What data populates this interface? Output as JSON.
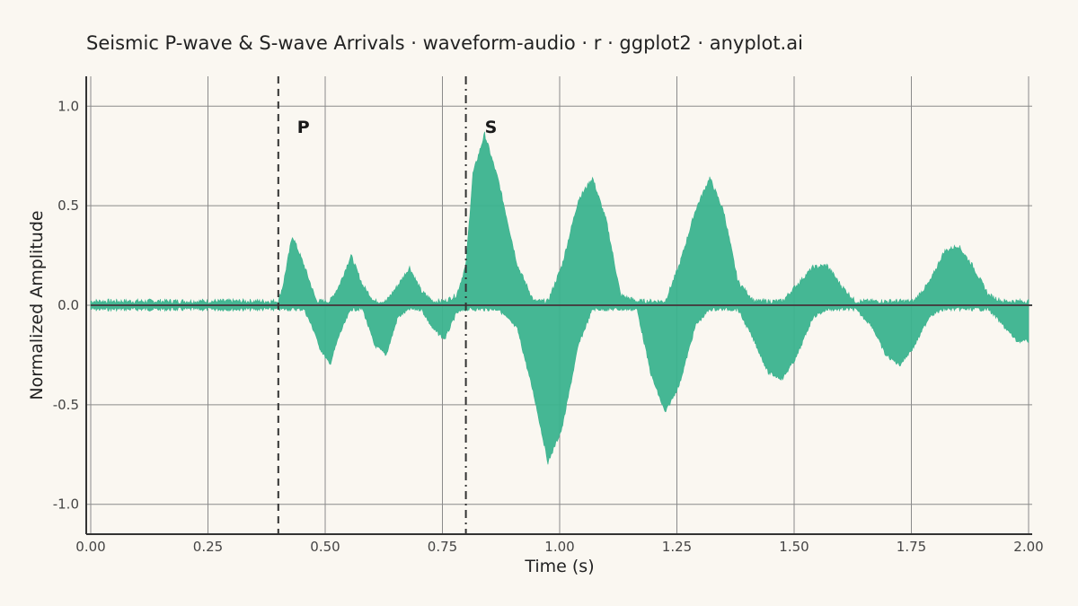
{
  "chart_data": {
    "type": "area",
    "title": "Seismic P-wave & S-wave Arrivals · waveform-audio · r · ggplot2 · anyplot.ai",
    "xlabel": "Time (s)",
    "ylabel": "Normalized Amplitude",
    "xlim": [
      0.0,
      2.0
    ],
    "ylim": [
      -1.15,
      1.15
    ],
    "x_ticks": [
      0.0,
      0.25,
      0.5,
      0.75,
      1.0,
      1.25,
      1.5,
      1.75,
      2.0
    ],
    "x_tick_labels": [
      "0.00",
      "0.25",
      "0.50",
      "0.75",
      "1.00",
      "1.25",
      "1.50",
      "1.75",
      "2.00"
    ],
    "y_ticks": [
      -1.0,
      -0.5,
      0.0,
      0.5,
      1.0
    ],
    "y_tick_labels": [
      "-1.0",
      "-0.5",
      "0.0",
      "0.5",
      "1.0"
    ],
    "grid": true,
    "fill_color": "#3BB38E",
    "baseline_color": "#444444",
    "markers": [
      {
        "label": "P",
        "x": 0.4,
        "style": "dashed"
      },
      {
        "label": "S",
        "x": 0.8,
        "style": "dotdash"
      }
    ],
    "series": [
      {
        "x": [
          0.0,
          0.4,
          0.41,
          0.43,
          0.455,
          0.48,
          0.485,
          0.51,
          0.53,
          0.555,
          0.58,
          0.605,
          0.63,
          0.655,
          0.68,
          0.705,
          0.73,
          0.755,
          0.78,
          0.8,
          0.815,
          0.84,
          0.87,
          0.91,
          0.945,
          0.975,
          1.005,
          1.04,
          1.07,
          1.1,
          1.13,
          1.165,
          1.195,
          1.225,
          1.255,
          1.29,
          1.32,
          1.35,
          1.38,
          1.415,
          1.445,
          1.475,
          1.505,
          1.54,
          1.57,
          1.6,
          1.63,
          1.665,
          1.695,
          1.725,
          1.755,
          1.79,
          1.82,
          1.85,
          1.88,
          1.915,
          1.945,
          1.975,
          2.0
        ],
        "upper": [
          0.02,
          0.02,
          0.1,
          0.35,
          0.2,
          0.03,
          0.02,
          0.02,
          0.1,
          0.25,
          0.1,
          0.02,
          0.02,
          0.1,
          0.19,
          0.07,
          0.02,
          0.02,
          0.05,
          0.2,
          0.66,
          0.86,
          0.62,
          0.2,
          0.02,
          0.02,
          0.2,
          0.53,
          0.64,
          0.42,
          0.05,
          0.02,
          0.02,
          0.02,
          0.2,
          0.48,
          0.64,
          0.47,
          0.12,
          0.02,
          0.02,
          0.02,
          0.1,
          0.19,
          0.2,
          0.1,
          0.02,
          0.02,
          0.02,
          0.02,
          0.02,
          0.12,
          0.27,
          0.3,
          0.2,
          0.05,
          0.02,
          0.02,
          0.02
        ],
        "lower": [
          -0.02,
          -0.02,
          -0.02,
          -0.02,
          -0.02,
          -0.15,
          -0.2,
          -0.3,
          -0.15,
          -0.02,
          -0.02,
          -0.2,
          -0.25,
          -0.06,
          -0.02,
          -0.02,
          -0.12,
          -0.17,
          -0.04,
          -0.02,
          -0.02,
          -0.02,
          -0.02,
          -0.12,
          -0.45,
          -0.79,
          -0.62,
          -0.2,
          -0.02,
          -0.02,
          -0.02,
          -0.02,
          -0.35,
          -0.54,
          -0.4,
          -0.1,
          -0.02,
          -0.02,
          -0.02,
          -0.18,
          -0.34,
          -0.37,
          -0.26,
          -0.06,
          -0.02,
          -0.02,
          -0.02,
          -0.1,
          -0.25,
          -0.3,
          -0.21,
          -0.05,
          -0.02,
          -0.02,
          -0.02,
          -0.02,
          -0.1,
          -0.18,
          -0.18
        ]
      }
    ]
  }
}
